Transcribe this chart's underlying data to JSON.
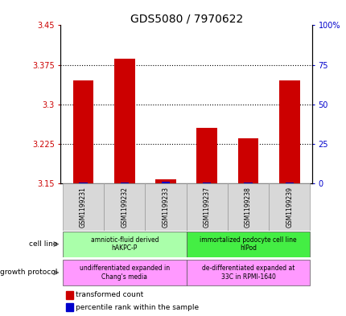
{
  "title": "GDS5080 / 7970622",
  "samples": [
    "GSM1199231",
    "GSM1199232",
    "GSM1199233",
    "GSM1199237",
    "GSM1199238",
    "GSM1199239"
  ],
  "red_values": [
    3.345,
    3.387,
    3.157,
    3.255,
    3.235,
    3.345
  ],
  "blue_values": [
    0.3,
    0.3,
    1.2,
    0.4,
    0.3,
    0.4
  ],
  "ylim_left": [
    3.15,
    3.45
  ],
  "ylim_right": [
    0,
    100
  ],
  "yticks_left": [
    3.15,
    3.225,
    3.3,
    3.375,
    3.45
  ],
  "yticks_left_labels": [
    "3.15",
    "3.225",
    "3.3",
    "3.375",
    "3.45"
  ],
  "yticks_right": [
    0,
    25,
    50,
    75,
    100
  ],
  "yticks_right_labels": [
    "0",
    "25",
    "50",
    "75",
    "100%"
  ],
  "hlines": [
    3.225,
    3.3,
    3.375
  ],
  "red_color": "#cc0000",
  "blue_color": "#0000cc",
  "cell_line_left_label": "amniotic-fluid derived\nhAKPC-P",
  "cell_line_left_color": "#aaffaa",
  "cell_line_right_label": "immortalized podocyte cell line\nhIPod",
  "cell_line_right_color": "#44ee44",
  "growth_left_label": "undifferentiated expanded in\nChang's media",
  "growth_right_label": "de-differentiated expanded at\n33C in RPMI-1640",
  "growth_color": "#ff99ff",
  "cell_line_label": "cell line",
  "growth_protocol_label": "growth protocol",
  "legend_red": "transformed count",
  "legend_blue": "percentile rank within the sample",
  "background_color": "#ffffff",
  "tick_label_color_left": "#cc0000",
  "tick_label_color_right": "#0000cc",
  "title_fontsize": 10,
  "tick_fontsize": 7,
  "sample_fontsize": 5.5,
  "annotation_fontsize": 5.5,
  "legend_fontsize": 6.5
}
